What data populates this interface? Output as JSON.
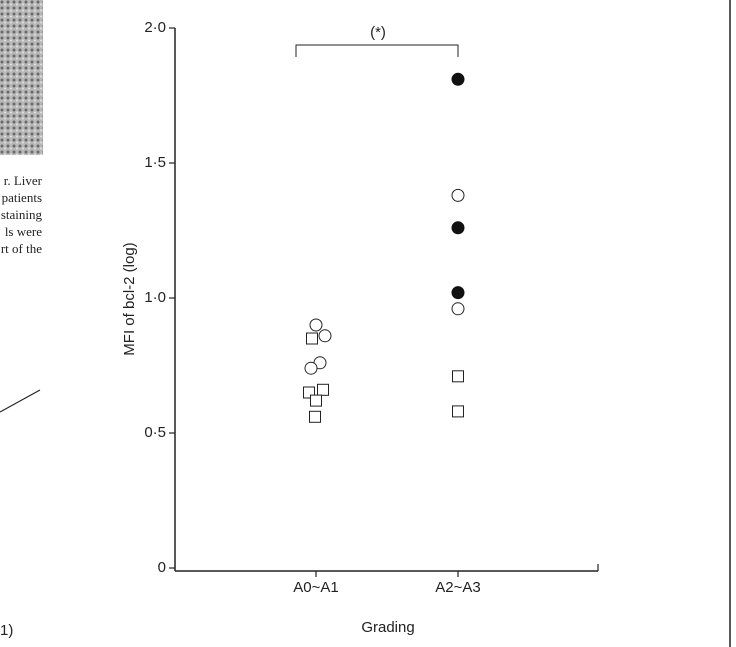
{
  "chart_data": {
    "type": "scatter",
    "categories": [
      "A0~A1",
      "A2~A3"
    ],
    "xlabel": "Grading",
    "ylabel": "MFI of bcl-2 (log)",
    "ylim": [
      0,
      2
    ],
    "yticks": [
      0,
      {
        "value": 0.5,
        "label": "0·5"
      },
      {
        "value": 1,
        "label": "1·0"
      },
      {
        "value": 1.5,
        "label": "1·5"
      },
      {
        "value": 2,
        "label": "2·0"
      }
    ],
    "annotation": "(*)",
    "series": [
      {
        "marker": "open-circle",
        "color": "#222222",
        "x": [
          "A0~A1",
          "A0~A1",
          "A0~A1",
          "A0~A1",
          "A2~A3",
          "A2~A3"
        ],
        "values": [
          0.9,
          0.86,
          0.76,
          0.74,
          1.38,
          0.96
        ]
      },
      {
        "marker": "filled-circle",
        "color": "#111111",
        "x": [
          "A2~A3",
          "A2~A3",
          "A2~A3"
        ],
        "values": [
          1.81,
          1.26,
          1.02
        ]
      },
      {
        "marker": "open-square",
        "color": "#222222",
        "x": [
          "A0~A1",
          "A0~A1",
          "A0~A1",
          "A0~A1",
          "A0~A1",
          "A2~A3",
          "A2~A3"
        ],
        "values": [
          0.85,
          0.66,
          0.65,
          0.62,
          0.56,
          0.71,
          0.58
        ]
      }
    ]
  },
  "page_fragments": [
    "r.  Liver",
    "patients",
    "staining",
    "ls were",
    "rt of the",
    "1)"
  ]
}
